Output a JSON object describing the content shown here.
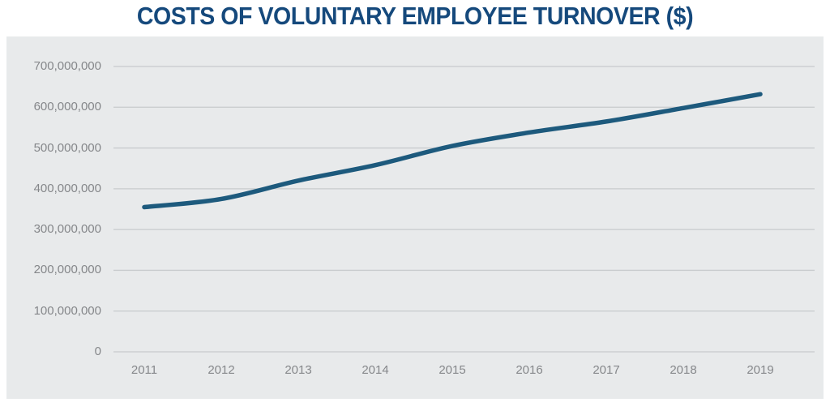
{
  "chart_data": {
    "type": "line",
    "title": "COSTS OF VOLUNTARY EMPLOYEE TURNOVER ($)",
    "x": [
      "2011",
      "2012",
      "2013",
      "2014",
      "2015",
      "2016",
      "2017",
      "2018",
      "2019"
    ],
    "series": [
      {
        "name": "Costs of voluntary employee turnover ($)",
        "values": [
          355000000,
          375000000,
          420000000,
          458000000,
          505000000,
          538000000,
          565000000,
          598000000,
          632000000
        ]
      }
    ],
    "xlabel": "",
    "ylabel": "",
    "ylim": [
      0,
      700000000
    ],
    "ytick_values": [
      0,
      100000000,
      200000000,
      300000000,
      400000000,
      500000000,
      600000000,
      700000000
    ],
    "ytick_labels": [
      "0",
      "100,000,000",
      "200,000,000",
      "300,000,000",
      "400,000,000",
      "500,000,000",
      "600,000,000",
      "700,000,000"
    ],
    "grid": true,
    "legend_position": "none",
    "colors": {
      "line": "#1d5a7d",
      "title": "#15497c",
      "panel_background": "#e8eaeb",
      "gridline": "#c8cbcd",
      "axis_text": "#85878a",
      "page_background": "#ffffff"
    }
  }
}
